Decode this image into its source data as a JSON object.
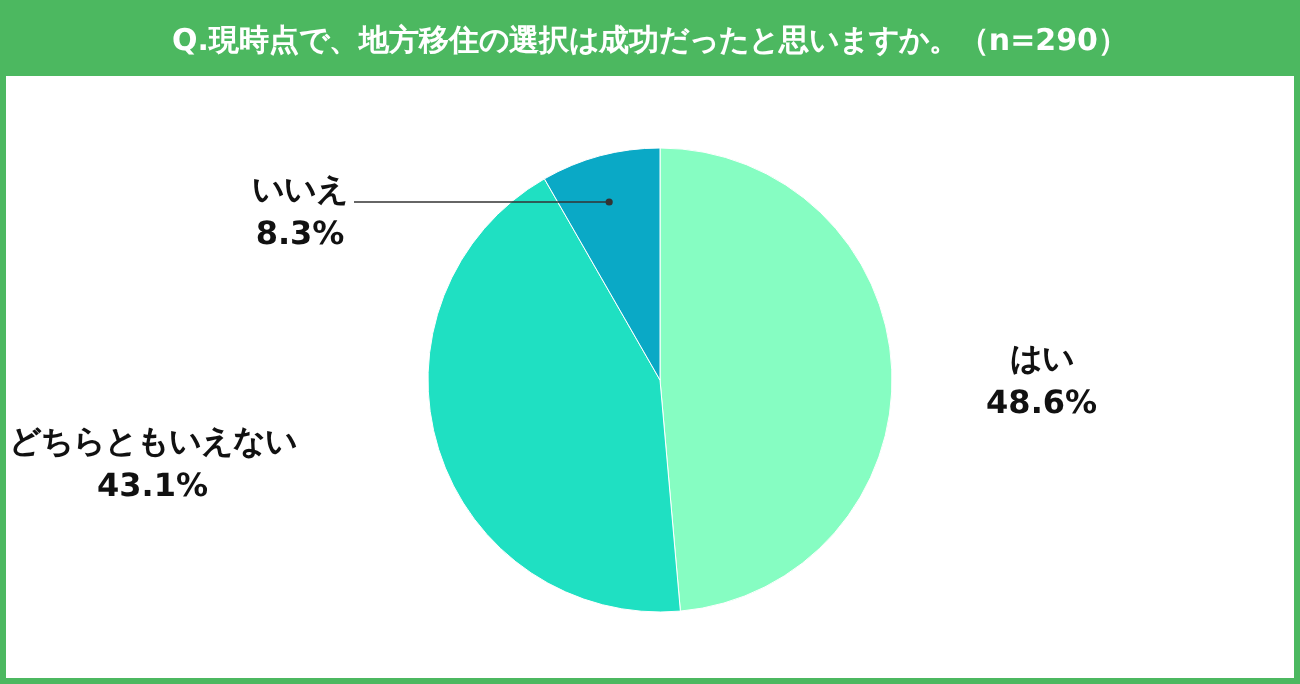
{
  "chart_data": {
    "type": "pie",
    "title": "Q.現時点で、地方移住の選択は成功だったと思いますか。（n=290）",
    "categories": [
      "はい",
      "どちらともいえない",
      "いいえ"
    ],
    "values": [
      48.6,
      43.1,
      8.3
    ],
    "value_labels": [
      "48.6%",
      "43.1%",
      "8.3%"
    ],
    "colors": [
      "#86fdc2",
      "#1fe0c2",
      "#0aa9c6"
    ],
    "legend": false
  }
}
